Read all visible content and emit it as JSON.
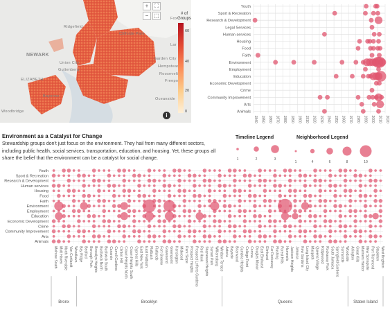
{
  "map": {
    "labels": [
      "NEWARK",
      "ELIZABETH",
      "Bayonne",
      "Woodbridge",
      "Ridgefield",
      "Cliffside Park",
      "Union City",
      "Guttenberg",
      "Garden City",
      "Hempstead",
      "Freeport",
      "Roosevelt",
      "Oceanside",
      "Fox",
      "Lar"
    ],
    "legend_title": "# of Groups",
    "legend_ticks": [
      "60",
      "40",
      "20",
      "0"
    ],
    "info_icon": "i",
    "tools": [
      "plus-icon",
      "minus-icon",
      "fullscreen-icon",
      "select-icon"
    ]
  },
  "summary": {
    "title": "Environment as a Catalyst for Change",
    "text": "Stewardship groups don't just focus on the environment. They hail from many different sectors, including public health, social services, transportation, education, and housing. Yet, these groups all share the belief that the environment can be a catalyst for social change."
  },
  "legends": {
    "timeline": {
      "title": "Timeline Legend",
      "labels": [
        "1",
        "2",
        "3"
      ]
    },
    "neighborhood": {
      "title": "Neighborhood Legend",
      "labels": [
        "1",
        "4",
        "6",
        "8",
        "10"
      ]
    }
  },
  "chart_data": [
    {
      "type": "scatter",
      "id": "timeline",
      "categories": [
        "Youth",
        "Sport & Recreation",
        "Research & Development",
        "Legal Services",
        "Human services",
        "Housing",
        "Food",
        "Faith",
        "Environment",
        "Employment",
        "Education",
        "Economic Development",
        "Crime",
        "Community Improvement",
        "Arts",
        "Animals"
      ],
      "x_ticks": [
        "1840",
        "1850",
        "1860",
        "1870",
        "1880",
        "1890",
        "1900",
        "1910",
        "1920",
        "1930",
        "1940",
        "1950",
        "1960",
        "1970",
        "1980",
        "1990",
        "2000",
        "2010",
        "2020"
      ],
      "xlim": [
        1840,
        2020
      ],
      "points": [
        {
          "cat": "Youth",
          "x": 1994,
          "size": 1
        },
        {
          "cat": "Youth",
          "x": 2007,
          "size": 1
        },
        {
          "cat": "Youth",
          "x": 2009,
          "size": 1
        },
        {
          "cat": "Sport & Recreation",
          "x": 1951,
          "size": 1
        },
        {
          "cat": "Sport & Recreation",
          "x": 1993,
          "size": 1
        },
        {
          "cat": "Sport & Recreation",
          "x": 2004,
          "size": 1
        },
        {
          "cat": "Sport & Recreation",
          "x": 2010,
          "size": 1
        },
        {
          "cat": "Research & Development",
          "x": 1842,
          "size": 1
        },
        {
          "cat": "Research & Development",
          "x": 2001,
          "size": 1
        },
        {
          "cat": "Research & Development",
          "x": 2011,
          "size": 2
        },
        {
          "cat": "Legal Services",
          "x": 2002,
          "size": 1
        },
        {
          "cat": "Human services",
          "x": 1937,
          "size": 1
        },
        {
          "cat": "Human services",
          "x": 2005,
          "size": 1
        },
        {
          "cat": "Human services",
          "x": 2012,
          "size": 1
        },
        {
          "cat": "Housing",
          "x": 1985,
          "size": 1
        },
        {
          "cat": "Housing",
          "x": 1996,
          "size": 1
        },
        {
          "cat": "Housing",
          "x": 1999,
          "size": 1
        },
        {
          "cat": "Housing",
          "x": 2004,
          "size": 1
        },
        {
          "cat": "Housing",
          "x": 2011,
          "size": 1
        },
        {
          "cat": "Food",
          "x": 1983,
          "size": 1
        },
        {
          "cat": "Food",
          "x": 2000,
          "size": 1
        },
        {
          "cat": "Food",
          "x": 2004,
          "size": 1
        },
        {
          "cat": "Food",
          "x": 2010,
          "size": 1
        },
        {
          "cat": "Food",
          "x": 2013,
          "size": 1
        },
        {
          "cat": "Faith",
          "x": 1846,
          "size": 1
        },
        {
          "cat": "Faith",
          "x": 2002,
          "size": 1
        },
        {
          "cat": "Faith",
          "x": 2012,
          "size": 1
        },
        {
          "cat": "Environment",
          "x": 1870,
          "size": 1
        },
        {
          "cat": "Environment",
          "x": 1895,
          "size": 1
        },
        {
          "cat": "Environment",
          "x": 1923,
          "size": 1
        },
        {
          "cat": "Environment",
          "x": 1961,
          "size": 1
        },
        {
          "cat": "Environment",
          "x": 1980,
          "size": 1
        },
        {
          "cat": "Environment",
          "x": 1990,
          "size": 1
        },
        {
          "cat": "Environment",
          "x": 1995,
          "size": 2
        },
        {
          "cat": "Environment",
          "x": 1999,
          "size": 2
        },
        {
          "cat": "Environment",
          "x": 2003,
          "size": 2
        },
        {
          "cat": "Environment",
          "x": 2007,
          "size": 2
        },
        {
          "cat": "Environment",
          "x": 2010,
          "size": 3
        },
        {
          "cat": "Environment",
          "x": 2013,
          "size": 3
        },
        {
          "cat": "Environment",
          "x": 2016,
          "size": 2
        },
        {
          "cat": "Employment",
          "x": 1993,
          "size": 1
        },
        {
          "cat": "Employment",
          "x": 2011,
          "size": 1
        },
        {
          "cat": "Education",
          "x": 1953,
          "size": 1
        },
        {
          "cat": "Education",
          "x": 1975,
          "size": 1
        },
        {
          "cat": "Education",
          "x": 1990,
          "size": 1
        },
        {
          "cat": "Education",
          "x": 1997,
          "size": 1
        },
        {
          "cat": "Education",
          "x": 2000,
          "size": 1
        },
        {
          "cat": "Education",
          "x": 2004,
          "size": 2
        },
        {
          "cat": "Education",
          "x": 2008,
          "size": 2
        },
        {
          "cat": "Education",
          "x": 2011,
          "size": 2
        },
        {
          "cat": "Education",
          "x": 2014,
          "size": 3
        },
        {
          "cat": "Economic Development",
          "x": 2008,
          "size": 1
        },
        {
          "cat": "Economic Development",
          "x": 2012,
          "size": 1
        },
        {
          "cat": "Crime",
          "x": 2002,
          "size": 1
        },
        {
          "cat": "Community Improvement",
          "x": 1931,
          "size": 1
        },
        {
          "cat": "Community Improvement",
          "x": 1941,
          "size": 1
        },
        {
          "cat": "Community Improvement",
          "x": 1983,
          "size": 1
        },
        {
          "cat": "Community Improvement",
          "x": 1998,
          "size": 1
        },
        {
          "cat": "Community Improvement",
          "x": 2003,
          "size": 1
        },
        {
          "cat": "Community Improvement",
          "x": 2008,
          "size": 1
        },
        {
          "cat": "Community Improvement",
          "x": 2011,
          "size": 2
        },
        {
          "cat": "Community Improvement",
          "x": 2015,
          "size": 1
        },
        {
          "cat": "Arts",
          "x": 1988,
          "size": 1
        },
        {
          "cat": "Arts",
          "x": 2005,
          "size": 1
        },
        {
          "cat": "Arts",
          "x": 2013,
          "size": 2
        },
        {
          "cat": "Animals",
          "x": 1937,
          "size": 1
        },
        {
          "cat": "Animals",
          "x": 1990,
          "size": 1
        },
        {
          "cat": "Animals",
          "x": 2011,
          "size": 1
        }
      ]
    },
    {
      "type": "scatter",
      "id": "neighborhood",
      "categories": [
        "Youth",
        "Sport & Recreation",
        "Research & Development",
        "Human services",
        "Housing",
        "Food",
        "Faith",
        "Environment",
        "Employment",
        "Education",
        "Economic Development",
        "Crime",
        "Community Improvement",
        "Arts",
        "Animals"
      ],
      "neighborhoods": [
        "Melrose South",
        "Mott Haven",
        "North Riverdale",
        "Van Cortlandt",
        "Woodlawn",
        "Bay Ridge",
        "Bedford",
        "Borough Park",
        "Brooklyn Heights",
        "Bushwick North",
        "Bushwick South",
        "Canarsie",
        "Carroll Gardens",
        "Clinton Hill",
        "Crown Heights North",
        "Crown Heights South",
        "Cypress Hills",
        "East New York",
        "East Flatbush",
        "Flatbush",
        "Flatlands",
        "Fort Greene",
        "Gravesend",
        "Greenpoint",
        "Kensington",
        "Midwood",
        "Park Slope",
        "Prospect Heights",
        "Prospect Lefferts Gardens",
        "Red Hook",
        "Stuyvesant Heights",
        "Sunset Park",
        "Williamsburg",
        "Windsor Terrace",
        "Astoria",
        "Bayside",
        "Briarwood",
        "Cambria Heights",
        "College Point",
        "Corona",
        "Douglas Manor",
        "East Elmhurst",
        "Elmhurst",
        "Far Rockaway",
        "Flushing",
        "Forest Hills",
        "Hammels",
        "Jackson Heights",
        "Jamaica",
        "Kew Gardens",
        "Long Island City",
        "Maspeth",
        "Queens Village",
        "Ridgewood",
        "Rockaway Park",
        "South Jamaica",
        "Springfield Gardens",
        "Sunnyside",
        "Woodside",
        "Arlington",
        "Great Kills",
        "Mariners Harbor",
        "New Springville",
        "Port Richmond",
        "Stapleton",
        "West Brighton"
      ],
      "boroughs": [
        {
          "name": "Bronx",
          "count": 5
        },
        {
          "name": "Brooklyn",
          "count": 29
        },
        {
          "name": "Queens",
          "count": 25
        },
        {
          "name": "Staten Island",
          "count": 7
        }
      ],
      "big_points": [
        {
          "cat": "Environment",
          "nbhd": "Mott Haven",
          "size": 6
        },
        {
          "cat": "Environment",
          "nbhd": "Bedford",
          "size": 5
        },
        {
          "cat": "Environment",
          "nbhd": "Crown Heights North",
          "size": 5
        },
        {
          "cat": "Environment",
          "nbhd": "Flatbush",
          "size": 9
        },
        {
          "cat": "Environment",
          "nbhd": "Greenpoint",
          "size": 8
        },
        {
          "cat": "Environment",
          "nbhd": "Williamsburg",
          "size": 6
        },
        {
          "cat": "Environment",
          "nbhd": "Hammels",
          "size": 10
        },
        {
          "cat": "Environment",
          "nbhd": "Long Island City",
          "size": 5
        },
        {
          "cat": "Education",
          "nbhd": "Mott Haven",
          "size": 5
        },
        {
          "cat": "Education",
          "nbhd": "Crown Heights North",
          "size": 5
        },
        {
          "cat": "Education",
          "nbhd": "Flatbush",
          "size": 6
        },
        {
          "cat": "Education",
          "nbhd": "Greenpoint",
          "size": 6
        },
        {
          "cat": "Education",
          "nbhd": "Red Hook",
          "size": 5
        },
        {
          "cat": "Education",
          "nbhd": "Hammels",
          "size": 5
        },
        {
          "cat": "Education",
          "nbhd": "Jamaica",
          "size": 4
        },
        {
          "cat": "Education",
          "nbhd": "Stapleton",
          "size": 4
        }
      ]
    }
  ],
  "colors": {
    "accent": "#e0556f",
    "map_fill": "#e34a33",
    "gridline": "#dcdcdc"
  }
}
